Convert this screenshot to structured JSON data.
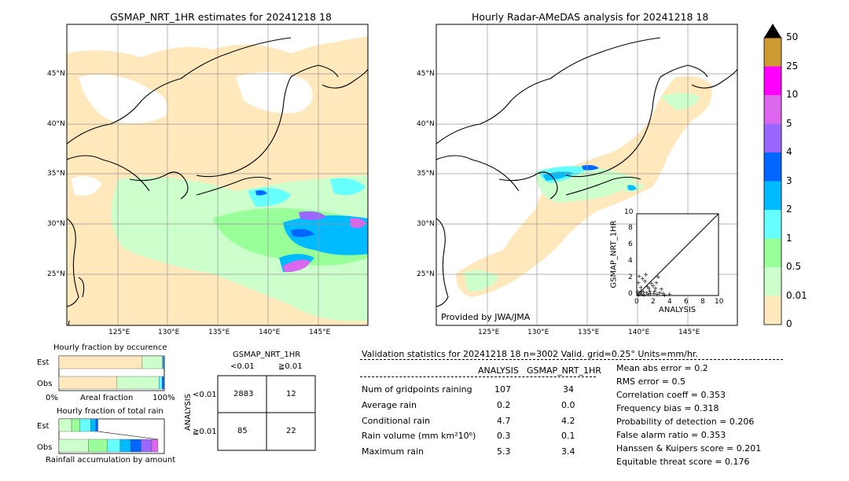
{
  "maps": {
    "left_title": "GSMAP_NRT_1HR estimates for 20241218 18",
    "right_title": "Hourly Radar-AMeDAS analysis for 20241218 18",
    "lat_labels": [
      "45°N",
      "40°N",
      "35°N",
      "30°N",
      "25°N"
    ],
    "lon_labels": [
      "125°E",
      "130°E",
      "135°E",
      "140°E",
      "145°E"
    ],
    "credit": "Provided by JWA/JMA"
  },
  "colorbar": {
    "labels": [
      "50",
      "25",
      "10",
      "5",
      "4",
      "3",
      "2",
      "1",
      "0.5",
      "0.01",
      "0"
    ],
    "colors": [
      "#cc9933",
      "#ff00ff",
      "#dd66ee",
      "#9966ff",
      "#0066ff",
      "#00bbff",
      "#66ffff",
      "#99ff99",
      "#ccffcc",
      "#ffe8bb"
    ]
  },
  "scatter": {
    "xlabel": "ANALYSIS",
    "ylabel": "GSMAP_NRT_1HR",
    "ticks": [
      "0",
      "2",
      "4",
      "6",
      "8",
      "10"
    ],
    "points": [
      [
        0.2,
        0.1
      ],
      [
        0.4,
        0.3
      ],
      [
        0.5,
        1.0
      ],
      [
        0.6,
        0.2
      ],
      [
        0.8,
        0.5
      ],
      [
        1.0,
        1.8
      ],
      [
        1.2,
        0.4
      ],
      [
        1.5,
        0.9
      ],
      [
        1.7,
        0.3
      ],
      [
        2.0,
        1.2
      ],
      [
        2.2,
        0.6
      ],
      [
        2.5,
        0.2
      ],
      [
        3.0,
        0.8
      ],
      [
        3.2,
        0.3
      ],
      [
        0.3,
        2.4
      ],
      [
        0.7,
        2.1
      ],
      [
        1.1,
        2.6
      ],
      [
        2.6,
        2.3
      ],
      [
        0.9,
        0.1
      ],
      [
        1.4,
        0.2
      ],
      [
        1.8,
        1.5
      ],
      [
        2.8,
        0.4
      ],
      [
        3.4,
        0.1
      ],
      [
        0.5,
        0.6
      ],
      [
        1.3,
        1.1
      ],
      [
        2.3,
        0.9
      ],
      [
        0.1,
        0.5
      ],
      [
        0.2,
        1.6
      ],
      [
        1.6,
        0.6
      ],
      [
        2.1,
        0.3
      ],
      [
        4.0,
        0.2
      ],
      [
        2.4,
        1.6
      ]
    ]
  },
  "occurrence": {
    "title": "Hourly fraction by occurence",
    "rows": [
      "Est",
      "Obs"
    ],
    "axis_left": "0%",
    "axis_mid": "Areal fraction",
    "axis_right": "100%",
    "est_fractions": [
      0.79,
      0.19,
      0.01,
      0.01
    ],
    "obs_fractions": [
      0.55,
      0.4,
      0.03,
      0.02
    ],
    "segment_colors": [
      "#ffe8bb",
      "#ccffcc",
      "#66ffff",
      "#0066ff"
    ]
  },
  "accumulation": {
    "title": "Hourly fraction of total rain",
    "rows": [
      "Est",
      "Obs"
    ],
    "axis_label": "Rainfall accumulation by amount",
    "est_fractions": [
      0.12,
      0.08,
      0.1,
      0.05,
      0.02
    ],
    "obs_fractions": [
      0.28,
      0.18,
      0.12,
      0.1,
      0.1,
      0.1,
      0.06
    ],
    "segment_colors": [
      "#ccffcc",
      "#99ff99",
      "#66ffff",
      "#00bbff",
      "#0066ff",
      "#9966ff",
      "#dd66ee"
    ]
  },
  "contingency": {
    "title": "GSMAP_NRT_1HR",
    "col_labels": [
      "<0.01",
      "≧0.01"
    ],
    "row_axis": "ANALYSIS",
    "row_labels": [
      "<0.01",
      "≧0.01"
    ],
    "cells": [
      [
        "2883",
        "12"
      ],
      [
        "85",
        "22"
      ]
    ]
  },
  "validation": {
    "header": "Validation statistics for 20241218 18  n=3002 Valid. grid=0.25° Units=mm/hr.",
    "col_analysis": "ANALYSIS",
    "col_gsmap": "GSMAP_NRT_1HR",
    "rows": [
      {
        "label": "Num of gridpoints raining",
        "analysis": "107",
        "gsmap": "34"
      },
      {
        "label": "Average rain",
        "analysis": "0.2",
        "gsmap": "0.0"
      },
      {
        "label": "Conditional rain",
        "analysis": "4.7",
        "gsmap": "4.2"
      },
      {
        "label": "Rain volume (mm km²10⁶)",
        "analysis": "0.3",
        "gsmap": "0.1"
      },
      {
        "label": "Maximum rain",
        "analysis": "5.3",
        "gsmap": "3.4"
      }
    ],
    "scores": [
      "Mean abs error =    0.2",
      "RMS error =    0.5",
      "Correlation coeff =  0.353",
      "Frequency bias =  0.318",
      "Probability of detection =  0.206",
      "False alarm ratio =  0.353",
      "Hanssen & Kuipers score =  0.201",
      "Equitable threat score =  0.176"
    ]
  }
}
